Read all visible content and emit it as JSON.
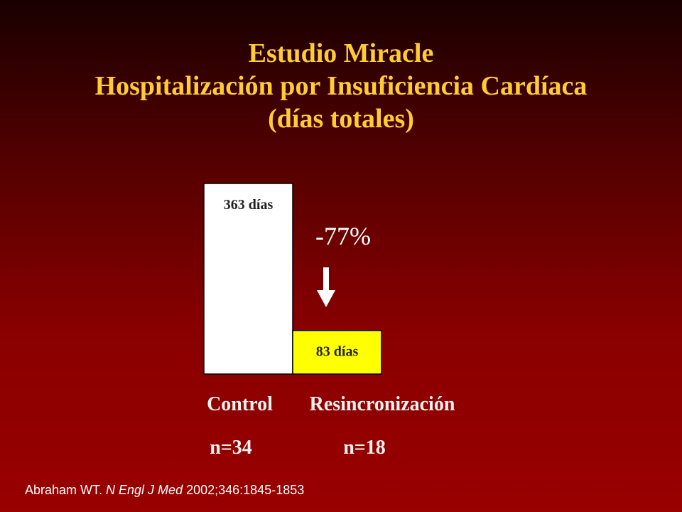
{
  "colors": {
    "title": "#ffcc33",
    "control_bar": "#ffffff",
    "treatment_bar": "#ffff00",
    "text": "#f2f2f2"
  },
  "title_lines": [
    "Estudio Miracle",
    "Hospitalización por Insuficiencia Cardíaca",
    "(días totales)"
  ],
  "chart_data": {
    "type": "bar",
    "categories": [
      "Control",
      "Resincronización"
    ],
    "values": [
      363,
      83
    ],
    "data_labels": [
      "363 días",
      "83 días"
    ],
    "group_sizes": [
      "n=34",
      "n=18"
    ],
    "annotation": "-77%",
    "ylim": [
      0,
      363
    ],
    "grid": false
  },
  "citation": {
    "authors": "Abraham WT. ",
    "journal": "N Engl J Med",
    "details": " 2002;346:1845-1853"
  }
}
